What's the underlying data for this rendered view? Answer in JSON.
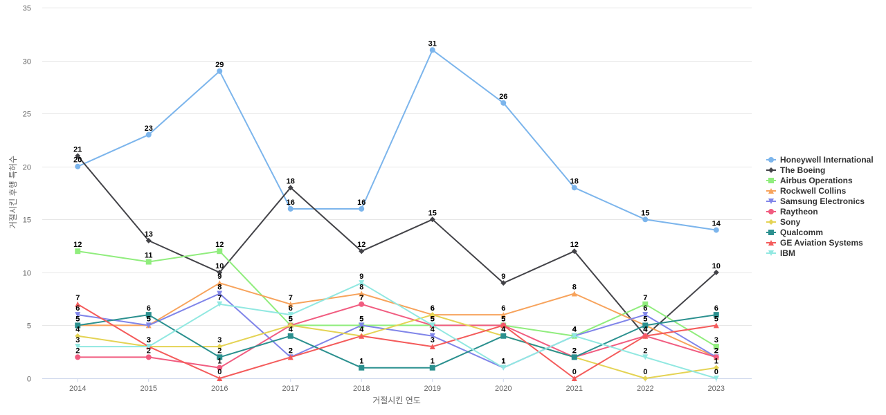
{
  "chart_data": {
    "type": "line",
    "title": "",
    "xlabel": "거절시킨 연도",
    "ylabel": "거절시킨 후행 특허수",
    "x": [
      "2014",
      "2015",
      "2016",
      "2017",
      "2018",
      "2019",
      "2020",
      "2021",
      "2022",
      "2023"
    ],
    "ylim": [
      0,
      35
    ],
    "yticks": [
      0,
      5,
      10,
      15,
      20,
      25,
      30,
      35
    ],
    "grid": true,
    "legend_position": "right",
    "series": [
      {
        "name": "Honeywell International",
        "color": "#7cb5ec",
        "marker": "circle",
        "values": [
          20,
          23,
          29,
          16,
          16,
          31,
          26,
          18,
          15,
          14
        ]
      },
      {
        "name": "The Boeing",
        "color": "#434348",
        "marker": "diamond",
        "values": [
          21,
          13,
          10,
          18,
          12,
          15,
          9,
          12,
          4,
          10
        ]
      },
      {
        "name": "Airbus Operations",
        "color": "#90ed7d",
        "marker": "square",
        "values": [
          12,
          11,
          12,
          5,
          5,
          5,
          5,
          4,
          7,
          3
        ]
      },
      {
        "name": "Rockwell Collins",
        "color": "#f7a35c",
        "marker": "triangle",
        "values": [
          5,
          5,
          9,
          7,
          8,
          6,
          6,
          8,
          5,
          2
        ]
      },
      {
        "name": "Samsung Electronics",
        "color": "#8085e9",
        "marker": "triangle-down",
        "values": [
          6,
          5,
          8,
          2,
          5,
          4,
          1,
          4,
          6,
          2
        ]
      },
      {
        "name": "Raytheon",
        "color": "#f15c80",
        "marker": "circle",
        "values": [
          2,
          2,
          1,
          5,
          7,
          5,
          5,
          2,
          4,
          2
        ]
      },
      {
        "name": "Sony",
        "color": "#e4d354",
        "marker": "diamond",
        "values": [
          4,
          3,
          3,
          5,
          4,
          6,
          4,
          2,
          0,
          1
        ]
      },
      {
        "name": "Qualcomm",
        "color": "#2b908f",
        "marker": "square",
        "values": [
          5,
          6,
          2,
          4,
          1,
          1,
          4,
          2,
          5,
          6
        ]
      },
      {
        "name": "GE Aviation Systems",
        "color": "#f45b5b",
        "marker": "triangle",
        "values": [
          7,
          3,
          0,
          2,
          4,
          3,
          5,
          0,
          4,
          5
        ]
      },
      {
        "name": "IBM",
        "color": "#91e8e1",
        "marker": "triangle-down",
        "values": [
          3,
          3,
          7,
          6,
          9,
          5,
          1,
          4,
          2,
          0
        ]
      }
    ]
  }
}
